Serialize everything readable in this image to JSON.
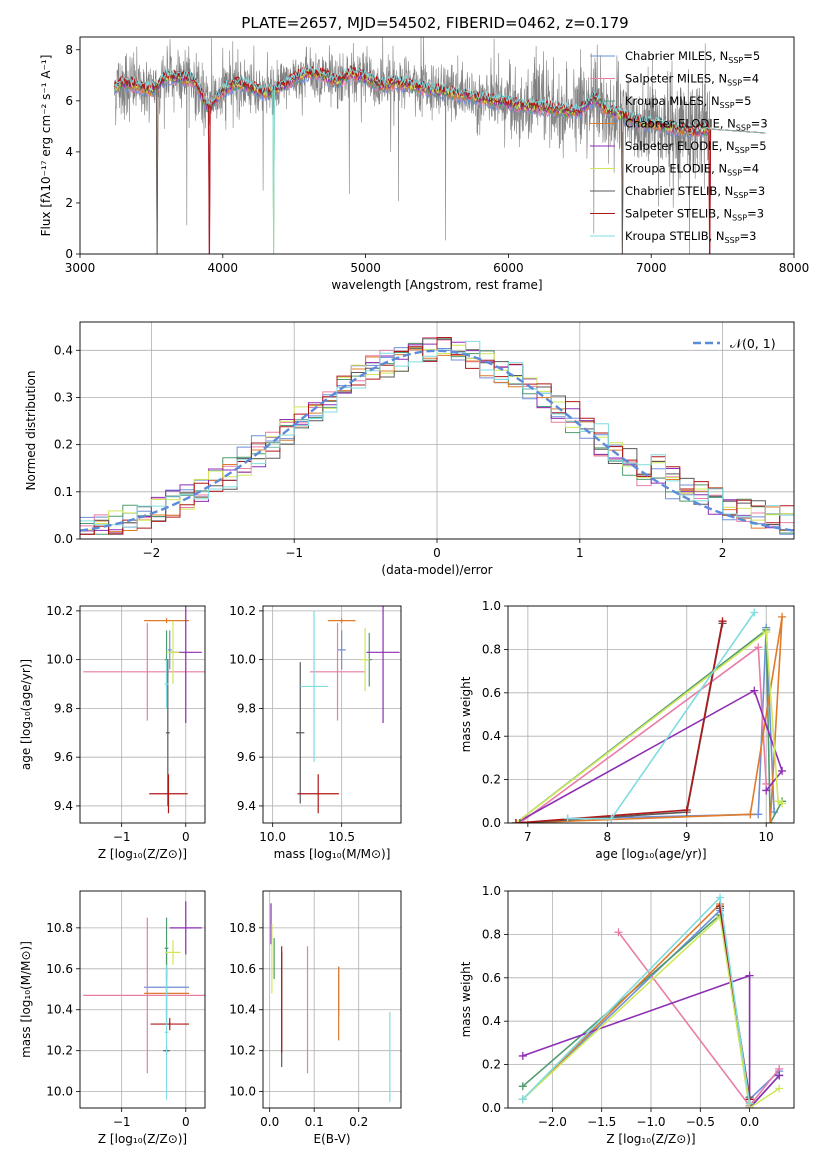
{
  "colors": {
    "Chabrier MILES": "#6f8fd9",
    "Salpeter MILES": "#e87da8",
    "Kroupa MILES": "#4f9a6f",
    "Chabrier ELODIE": "#e07b2a",
    "Salpeter ELODIE": "#8e2db5",
    "Kroupa ELODIE": "#cfe85a",
    "Chabrier STELIB": "#5a5a5a",
    "Salpeter STELIB": "#b01818",
    "Kroupa STELIB": "#80dce0",
    "data": "#808080",
    "normal": "#5b8bd9"
  },
  "chart_data": [
    {
      "id": "spectrum",
      "type": "line",
      "title": "PLATE=2657, MJD=54502, FIBERID=0462, z=0.179",
      "xlabel": "wavelength [Angstrom, rest frame]",
      "ylabel": "Flux [fλ10⁻¹⁷ erg cm⁻² s⁻¹ A⁻¹]",
      "xlim": [
        3000,
        8000
      ],
      "ylim": [
        0,
        8.5
      ],
      "xticks": [
        3000,
        4000,
        5000,
        6000,
        7000,
        8000
      ],
      "yticks": [
        0,
        2,
        4,
        6,
        8
      ],
      "legend_position": "upper right",
      "legend": [
        {
          "model": "Chabrier MILES",
          "label": "Chabrier MILES, N",
          "sub": "SSP",
          "n": "=5"
        },
        {
          "model": "Salpeter MILES",
          "label": "Salpeter MILES, N",
          "sub": "SSP",
          "n": "=4"
        },
        {
          "model": "Kroupa MILES",
          "label": "Kroupa MILES, N",
          "sub": "SSP",
          "n": "=5"
        },
        {
          "model": "Chabrier ELODIE",
          "label": "Chabrier ELODIE, N",
          "sub": "SSP",
          "n": "=3"
        },
        {
          "model": "Salpeter ELODIE",
          "label": "Salpeter ELODIE, N",
          "sub": "SSP",
          "n": "=5"
        },
        {
          "model": "Kroupa ELODIE",
          "label": "Kroupa ELODIE, N",
          "sub": "SSP",
          "n": "=4"
        },
        {
          "model": "Chabrier STELIB",
          "label": "Chabrier STELIB, N",
          "sub": "SSP",
          "n": "=3"
        },
        {
          "model": "Salpeter STELIB",
          "label": "Salpeter STELIB, N",
          "sub": "SSP",
          "n": "=3"
        },
        {
          "model": "Kroupa STELIB",
          "label": "Kroupa STELIB, N",
          "sub": "SSP",
          "n": "=3"
        }
      ],
      "observed_continuum": [
        [
          3240,
          6.5
        ],
        [
          3300,
          6.7
        ],
        [
          3400,
          6.6
        ],
        [
          3500,
          6.4
        ],
        [
          3600,
          6.9
        ],
        [
          3700,
          6.9
        ],
        [
          3800,
          6.8
        ],
        [
          3900,
          5.7
        ],
        [
          4000,
          6.4
        ],
        [
          4100,
          6.7
        ],
        [
          4200,
          6.5
        ],
        [
          4300,
          6.3
        ],
        [
          4400,
          6.5
        ],
        [
          4500,
          6.9
        ],
        [
          4600,
          7.1
        ],
        [
          4700,
          7.0
        ],
        [
          4800,
          6.7
        ],
        [
          4900,
          7.1
        ],
        [
          5000,
          6.9
        ],
        [
          5100,
          6.6
        ],
        [
          5200,
          6.7
        ],
        [
          5300,
          6.6
        ],
        [
          5400,
          6.5
        ],
        [
          5500,
          6.4
        ],
        [
          5600,
          6.3
        ],
        [
          5700,
          6.2
        ],
        [
          5800,
          6.1
        ],
        [
          5900,
          6.0
        ],
        [
          6000,
          5.9
        ],
        [
          6100,
          5.8
        ],
        [
          6200,
          5.75
        ],
        [
          6300,
          5.7
        ],
        [
          6400,
          5.6
        ],
        [
          6500,
          5.6
        ],
        [
          6600,
          6.1
        ],
        [
          6700,
          5.6
        ],
        [
          6800,
          5.4
        ],
        [
          6900,
          5.2
        ],
        [
          7000,
          5.1
        ],
        [
          7100,
          5.0
        ],
        [
          7200,
          4.9
        ],
        [
          7300,
          4.8
        ],
        [
          7400,
          4.9
        ]
      ],
      "model_end_wavelength": 7800,
      "model_dips": [
        3540,
        3905,
        4355,
        6800,
        7410
      ]
    },
    {
      "id": "residual_hist",
      "type": "histogram",
      "xlabel": "(data-model)/error",
      "ylabel": "Normed distribution",
      "xlim": [
        -2.5,
        2.5
      ],
      "ylim": [
        0,
        0.46
      ],
      "xticks": [
        -2,
        -1,
        0,
        1,
        2
      ],
      "yticks": [
        0.0,
        0.1,
        0.2,
        0.3,
        0.4
      ],
      "bin_width": 0.1,
      "reference_curve": "𝒩(0, 1)",
      "legend_position": "upper right"
    },
    {
      "id": "age_vs_Z",
      "type": "errorbar",
      "xlabel": "Z [log₁₀(Z/Z⊙)]",
      "ylabel": "age  [log₁₀(age/yr)]",
      "xlim": [
        -1.65,
        0.3
      ],
      "ylim": [
        9.33,
        10.22
      ],
      "xticks": [
        -1,
        0
      ],
      "yticks": [
        9.4,
        9.6,
        9.8,
        10.0,
        10.2
      ],
      "points": [
        {
          "model": "Chabrier MILES",
          "x": -0.25,
          "xerr": 0.03,
          "y": 10.04,
          "yerr": 0.08
        },
        {
          "model": "Salpeter MILES",
          "x": -0.6,
          "xerr": 1.0,
          "y": 9.95,
          "yerr": 0.2
        },
        {
          "model": "Kroupa MILES",
          "x": -0.3,
          "xerr": 0.03,
          "y": 10.0,
          "yerr": 0.12
        },
        {
          "model": "Chabrier ELODIE",
          "x": -0.3,
          "xerr": 0.35,
          "y": 10.16,
          "yerr": 0.01
        },
        {
          "model": "Salpeter ELODIE",
          "x": 0.0,
          "xerr": 0.25,
          "y": 10.03,
          "yerr": 0.29
        },
        {
          "model": "Kroupa ELODIE",
          "x": -0.2,
          "xerr": 0.1,
          "y": 10.03,
          "yerr": 0.13
        },
        {
          "model": "Chabrier STELIB",
          "x": -0.28,
          "xerr": 0.03,
          "y": 9.7,
          "yerr": 0.3
        },
        {
          "model": "Salpeter STELIB",
          "x": -0.27,
          "xerr": 0.3,
          "y": 9.45,
          "yerr": 0.08
        },
        {
          "model": "Kroupa STELIB",
          "x": -0.3,
          "xerr": 0.03,
          "y": 9.9,
          "yerr": 0.1
        }
      ]
    },
    {
      "id": "age_vs_mass",
      "type": "errorbar",
      "xlabel": "mass [log₁₀(M/M⊙)]",
      "ylabel": "",
      "xlim": [
        9.93,
        10.93
      ],
      "ylim": [
        9.33,
        10.22
      ],
      "xticks": [
        10.0,
        10.5
      ],
      "yticks": [
        9.4,
        9.6,
        9.8,
        10.0,
        10.2
      ],
      "points": [
        {
          "model": "Chabrier MILES",
          "x": 10.5,
          "xerr": 0.03,
          "y": 10.04,
          "yerr": 0.08
        },
        {
          "model": "Salpeter MILES",
          "x": 10.47,
          "xerr": 0.2,
          "y": 9.95,
          "yerr": 0.2
        },
        {
          "model": "Kroupa MILES",
          "x": 10.7,
          "xerr": 0.02,
          "y": 10.0,
          "yerr": 0.11
        },
        {
          "model": "Chabrier ELODIE",
          "x": 10.5,
          "xerr": 0.1,
          "y": 10.16,
          "yerr": 0.01
        },
        {
          "model": "Salpeter ELODIE",
          "x": 10.8,
          "xerr": 0.12,
          "y": 10.03,
          "yerr": 0.29
        },
        {
          "model": "Kroupa ELODIE",
          "x": 10.67,
          "xerr": 0.03,
          "y": 10.0,
          "yerr": 0.13
        },
        {
          "model": "Chabrier STELIB",
          "x": 10.2,
          "xerr": 0.03,
          "y": 9.7,
          "yerr": 0.29
        },
        {
          "model": "Salpeter STELIB",
          "x": 10.33,
          "xerr": 0.15,
          "y": 9.45,
          "yerr": 0.08
        },
        {
          "model": "Kroupa STELIB",
          "x": 10.3,
          "xerr": 0.1,
          "y": 9.89,
          "yerr": 0.31
        }
      ]
    },
    {
      "id": "mass_weight_vs_age",
      "type": "line",
      "xlabel": "age  [log₁₀(age/yr)]",
      "ylabel": "mass weight",
      "xlim": [
        6.75,
        10.35
      ],
      "ylim": [
        0,
        1.0
      ],
      "xticks": [
        7,
        8,
        9,
        10
      ],
      "yticks": [
        0.0,
        0.2,
        0.4,
        0.6,
        0.8,
        1.0
      ],
      "series": [
        {
          "model": "Chabrier MILES",
          "x": [
            7.5,
            9.9,
            10.0,
            10.1
          ],
          "y": [
            0.02,
            0.04,
            0.9,
            0.05
          ]
        },
        {
          "model": "Salpeter MILES",
          "x": [
            6.9,
            9.9,
            10.0
          ],
          "y": [
            0.0,
            0.81,
            0.18
          ]
        },
        {
          "model": "Kroupa MILES",
          "x": [
            6.85,
            10.0,
            10.05,
            10.2
          ],
          "y": [
            0.0,
            0.89,
            0.0,
            0.1
          ]
        },
        {
          "model": "Chabrier ELODIE",
          "x": [
            6.9,
            9.8,
            10.2,
            10.05
          ],
          "y": [
            0.0,
            0.04,
            0.95,
            0.0
          ]
        },
        {
          "model": "Salpeter ELODIE",
          "x": [
            6.85,
            9.85,
            10.2,
            10.0
          ],
          "y": [
            0.0,
            0.61,
            0.24,
            0.15
          ]
        },
        {
          "model": "Kroupa ELODIE",
          "x": [
            6.85,
            10.0,
            10.15,
            10.2
          ],
          "y": [
            0.0,
            0.88,
            0.1,
            0.09
          ]
        },
        {
          "model": "Chabrier STELIB",
          "x": [
            6.9,
            9.0,
            9.45
          ],
          "y": [
            0.0,
            0.05,
            0.92
          ]
        },
        {
          "model": "Salpeter STELIB",
          "x": [
            6.85,
            9.0,
            9.45
          ],
          "y": [
            0.0,
            0.06,
            0.93
          ]
        },
        {
          "model": "Kroupa STELIB",
          "x": [
            7.5,
            8.05,
            9.85
          ],
          "y": [
            0.02,
            0.02,
            0.97
          ]
        }
      ]
    },
    {
      "id": "mass_vs_Z",
      "type": "errorbar",
      "xlabel": "Z [log₁₀(Z/Z⊙)]",
      "ylabel": "mass [log₁₀(M/M⊙)]",
      "xlim": [
        -1.65,
        0.3
      ],
      "ylim": [
        9.92,
        10.98
      ],
      "xticks": [
        -1,
        0
      ],
      "yticks": [
        10.0,
        10.2,
        10.4,
        10.6,
        10.8
      ],
      "points": [
        {
          "model": "Chabrier MILES",
          "x": -0.3,
          "xerr": 0.35,
          "y": 10.51,
          "yerr": 0.18
        },
        {
          "model": "Salpeter MILES",
          "x": -0.6,
          "xerr": 1.0,
          "y": 10.47,
          "yerr": 0.38
        },
        {
          "model": "Kroupa MILES",
          "x": -0.3,
          "xerr": 0.03,
          "y": 10.7,
          "yerr": 0.15
        },
        {
          "model": "Chabrier ELODIE",
          "x": -0.3,
          "xerr": 0.35,
          "y": 10.48,
          "yerr": 0.12
        },
        {
          "model": "Salpeter ELODIE",
          "x": 0.0,
          "xerr": 0.25,
          "y": 10.8,
          "yerr": 0.13
        },
        {
          "model": "Kroupa ELODIE",
          "x": -0.2,
          "xerr": 0.12,
          "y": 10.68,
          "yerr": 0.06
        },
        {
          "model": "Chabrier STELIB",
          "x": -0.3,
          "xerr": 0.05,
          "y": 10.2,
          "yerr": 0.02
        },
        {
          "model": "Salpeter STELIB",
          "x": -0.25,
          "xerr": 0.3,
          "y": 10.33,
          "yerr": 0.03
        },
        {
          "model": "Kroupa STELIB",
          "x": -0.3,
          "xerr": 0.03,
          "y": 10.29,
          "yerr": 0.33
        }
      ]
    },
    {
      "id": "mass_vs_ebv",
      "type": "errorbar",
      "xlabel": "E(B-V)",
      "ylabel": "",
      "xlim": [
        -0.015,
        0.295
      ],
      "ylim": [
        9.92,
        10.98
      ],
      "xticks": [
        0.0,
        0.1,
        0.2
      ],
      "yticks": [
        10.0,
        10.2,
        10.4,
        10.6,
        10.8
      ],
      "points": [
        {
          "model": "Chabrier MILES",
          "x": 0.155,
          "xerr": 0.0,
          "y": 10.49,
          "yerr": 0.12
        },
        {
          "model": "Salpeter MILES",
          "x": 0.085,
          "xerr": 0.0,
          "y": 10.4,
          "yerr": 0.31
        },
        {
          "model": "Kroupa MILES",
          "x": 0.01,
          "xerr": 0.0,
          "y": 10.65,
          "yerr": 0.1
        },
        {
          "model": "Chabrier ELODIE",
          "x": 0.155,
          "xerr": 0.0,
          "y": 10.43,
          "yerr": 0.18
        },
        {
          "model": "Salpeter ELODIE",
          "x": 0.003,
          "xerr": 0.0,
          "y": 10.82,
          "yerr": 0.1
        },
        {
          "model": "Kroupa ELODIE",
          "x": 0.005,
          "xerr": 0.0,
          "y": 10.65,
          "yerr": 0.17
        },
        {
          "model": "Chabrier STELIB",
          "x": 0.027,
          "xerr": 0.0,
          "y": 10.4,
          "yerr": 0.28
        },
        {
          "model": "Salpeter STELIB",
          "x": 0.027,
          "xerr": 0.0,
          "y": 10.45,
          "yerr": 0.26
        },
        {
          "model": "Kroupa STELIB",
          "x": 0.27,
          "xerr": 0.0,
          "y": 10.17,
          "yerr": 0.22
        }
      ]
    },
    {
      "id": "mass_weight_vs_Z",
      "type": "line",
      "xlabel": "Z [log₁₀(Z/Z⊙)]",
      "ylabel": "mass weight",
      "xlim": [
        -2.45,
        0.45
      ],
      "ylim": [
        0,
        1.0
      ],
      "xticks": [
        -2.0,
        -1.5,
        -1.0,
        -0.5,
        0.0
      ],
      "yticks": [
        0.0,
        0.2,
        0.4,
        0.6,
        0.8,
        1.0
      ],
      "series": [
        {
          "model": "Chabrier MILES",
          "x": [
            -2.3,
            -0.3,
            0.0,
            0.3
          ],
          "y": [
            0.04,
            0.91,
            0.04,
            0.17
          ]
        },
        {
          "model": "Salpeter MILES",
          "x": [
            -1.33,
            0.0,
            0.3
          ],
          "y": [
            0.81,
            0.01,
            0.18
          ]
        },
        {
          "model": "Kroupa MILES",
          "x": [
            -2.3,
            -0.3,
            0.0,
            0.3
          ],
          "y": [
            0.1,
            0.89,
            0.0,
            0.15
          ]
        },
        {
          "model": "Chabrier ELODIE",
          "x": [
            -2.3,
            -0.3,
            0.0
          ],
          "y": [
            0.04,
            0.94,
            0.02
          ]
        },
        {
          "model": "Salpeter ELODIE",
          "x": [
            -2.3,
            0.0,
            0.0,
            0.3
          ],
          "y": [
            0.24,
            0.61,
            0.0,
            0.15
          ]
        },
        {
          "model": "Kroupa ELODIE",
          "x": [
            -2.3,
            -0.3,
            0.0,
            0.3
          ],
          "y": [
            0.04,
            0.88,
            0.0,
            0.09
          ]
        },
        {
          "model": "Chabrier STELIB",
          "x": [
            -0.3,
            0.0
          ],
          "y": [
            0.92,
            0.05
          ]
        },
        {
          "model": "Salpeter STELIB",
          "x": [
            -0.3,
            0.0
          ],
          "y": [
            0.93,
            0.04
          ]
        },
        {
          "model": "Kroupa STELIB",
          "x": [
            -2.3,
            -0.3,
            0.0
          ],
          "y": [
            0.04,
            0.97,
            0.02
          ]
        }
      ]
    }
  ]
}
